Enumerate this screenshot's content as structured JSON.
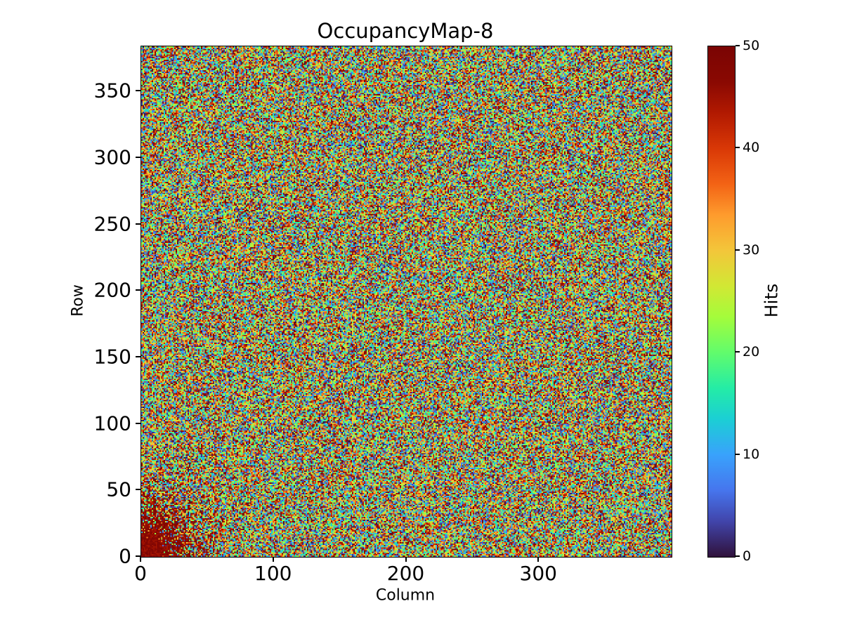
{
  "page": {
    "background": "#ffffff"
  },
  "chart_data": {
    "type": "heatmap",
    "title": "OccupancyMap-8",
    "xlabel": "Column",
    "ylabel": "Row",
    "colorbar_label": "Hits",
    "grid_cols": 400,
    "grid_rows": 384,
    "xlim": [
      0,
      400
    ],
    "ylim": [
      0,
      384
    ],
    "vmin": 0,
    "vmax": 50,
    "x_ticks": [
      0,
      100,
      200,
      300
    ],
    "y_ticks": [
      0,
      50,
      100,
      150,
      200,
      250,
      300,
      350
    ],
    "colorbar_ticks": [
      0,
      10,
      20,
      30,
      40,
      50
    ],
    "colormap": "turbo",
    "data_description": "Pixel-detector occupancy map: per-pixel hit counts drawn as uniform random noise spanning the full 0-50 range over a 400-column x 384-row matrix, with a dense hotspot of saturated high-occupancy pixels (44-50 hits, dark red) clustered around the origin in the bottom-left corner and fading out within roughly 60 pixels of the corner. No other visible structure.",
    "hotspot": {
      "center_col": 0,
      "center_row": 0,
      "sigma": 27,
      "peak_probability": 1.15,
      "value_min": 44,
      "value_max": 50
    },
    "noise_seed": 8,
    "axis_color": "#000000",
    "text_color": "#000000",
    "turbo_stops": [
      [
        0.0,
        "#30123b"
      ],
      [
        0.07,
        "#4145ab"
      ],
      [
        0.13,
        "#4675ed"
      ],
      [
        0.2,
        "#39a2fc"
      ],
      [
        0.27,
        "#1bcfd4"
      ],
      [
        0.33,
        "#24eca6"
      ],
      [
        0.4,
        "#61fc6c"
      ],
      [
        0.47,
        "#a4fc3b"
      ],
      [
        0.53,
        "#d1e834"
      ],
      [
        0.6,
        "#f3c63a"
      ],
      [
        0.67,
        "#fe9b2d"
      ],
      [
        0.73,
        "#f36315"
      ],
      [
        0.8,
        "#d93806"
      ],
      [
        0.87,
        "#b11901"
      ],
      [
        0.93,
        "#8a0902"
      ],
      [
        1.0,
        "#7a0403"
      ]
    ]
  }
}
